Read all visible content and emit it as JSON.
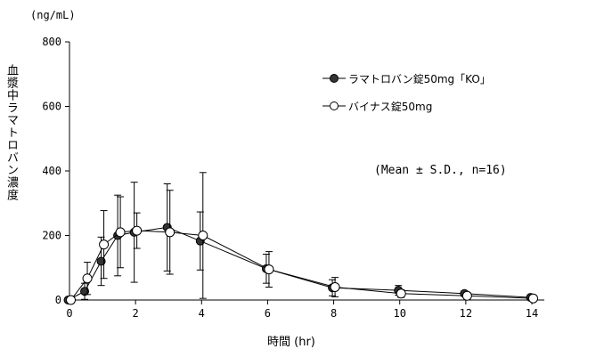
{
  "chart_data": {
    "type": "line",
    "unit_label": "(ng/mL)",
    "ylabel": "血漿中ラマトロバン濃度",
    "xlabel": "時間 (hr)",
    "annotation": "(Mean ± S.D., n=16)",
    "xlim": [
      0,
      14
    ],
    "ylim": [
      0,
      800
    ],
    "x_ticks": [
      0,
      2,
      4,
      6,
      8,
      10,
      12,
      14
    ],
    "y_ticks": [
      0,
      200,
      400,
      600,
      800
    ],
    "legend_position": "top-right",
    "series": [
      {
        "name": "ラマトロバン錠50mg「KO」",
        "marker": "filled-circle",
        "color": "#333333",
        "x": [
          0,
          0.5,
          1,
          1.5,
          2,
          3,
          4,
          6,
          8,
          10,
          12,
          14
        ],
        "y": [
          0,
          27,
          120,
          200,
          210,
          225,
          183,
          97,
          38,
          30,
          20,
          8
        ],
        "sd": [
          0,
          25,
          75,
          125,
          155,
          135,
          90,
          45,
          25,
          15,
          8,
          5
        ]
      },
      {
        "name": "バイナス錠50mg",
        "marker": "open-circle",
        "color": "#000000",
        "x": [
          0,
          0.5,
          1,
          1.5,
          2,
          3,
          4,
          6,
          8,
          10,
          12,
          14
        ],
        "y": [
          0,
          67,
          172,
          210,
          215,
          210,
          200,
          95,
          40,
          20,
          13,
          5
        ],
        "sd": [
          0,
          50,
          105,
          110,
          55,
          130,
          195,
          55,
          30,
          12,
          10,
          5
        ]
      }
    ]
  }
}
